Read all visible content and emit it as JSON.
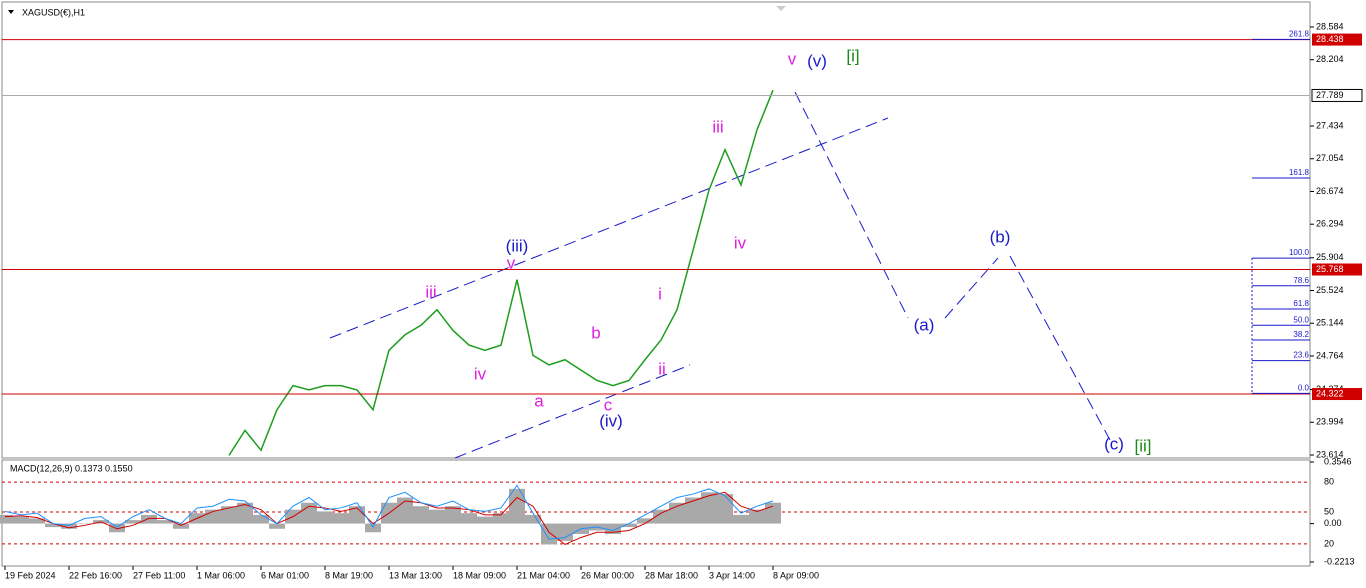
{
  "chart_data": [
    {
      "type": "line",
      "title": "XAGUSD(€),H1",
      "color": "#1e9e1e",
      "categories": [
        "19 Feb 2024",
        null,
        null,
        null,
        "22 Feb 16:00",
        null,
        null,
        null,
        "27 Feb 11:00",
        null,
        null,
        null,
        "1 Mar 06:00",
        null,
        null,
        null,
        "6 Mar 01:00",
        null,
        null,
        null,
        "8 Mar 19:00",
        null,
        null,
        null,
        "13 Mar 13:00",
        null,
        null,
        null,
        "18 Mar 09:00",
        null,
        null,
        null,
        "21 Mar 04:00",
        null,
        null,
        null,
        "26 Mar 00:00",
        null,
        null,
        null,
        "28 Mar 18:00",
        null,
        null,
        null,
        "3 Apr 14:00",
        null,
        null,
        null,
        "8 Apr 09:00"
      ],
      "values": [
        null,
        null,
        null,
        null,
        null,
        null,
        null,
        null,
        null,
        null,
        null,
        null,
        null,
        null,
        23.61,
        23.9,
        23.67,
        24.14,
        24.42,
        24.37,
        24.42,
        24.42,
        24.37,
        24.14,
        24.83,
        25.01,
        25.12,
        25.3,
        25.06,
        24.89,
        24.83,
        24.89,
        25.65,
        24.77,
        24.66,
        24.72,
        24.6,
        24.48,
        24.42,
        24.48,
        24.72,
        24.95,
        25.3,
        25.99,
        26.69,
        27.16,
        26.75,
        27.39,
        27.85
      ],
      "ylim": [
        23.614,
        28.584
      ],
      "yticks": [
        28.584,
        28.204,
        27.434,
        27.054,
        26.674,
        26.294,
        25.904,
        25.524,
        25.144,
        24.764,
        24.374,
        23.994,
        23.614
      ],
      "current": 27.789,
      "levels": [
        {
          "value": 28.438,
          "color": "#d00000"
        },
        {
          "value": 25.768,
          "color": "#d00000"
        },
        {
          "value": 24.322,
          "color": "#d00000"
        }
      ],
      "fibs": [
        {
          "label": "261.8",
          "price": 28.44
        },
        {
          "label": "161.8",
          "price": 26.83
        },
        {
          "label": "100.0",
          "price": 25.9
        },
        {
          "label": "78.6",
          "price": 25.58
        },
        {
          "label": "61.8",
          "price": 25.31
        },
        {
          "label": "50.0",
          "price": 25.12
        },
        {
          "label": "38.2",
          "price": 24.95
        },
        {
          "label": "23.6",
          "price": 24.71
        },
        {
          "label": "0.0",
          "price": 24.33
        }
      ],
      "annotations": [
        {
          "text": "v",
          "color": "#e020e0"
        },
        {
          "text": "(v)",
          "color": "#1a1acc"
        },
        {
          "text": "[i]",
          "color": "#1a8a1a"
        },
        {
          "text": "iii",
          "color": "#e020e0"
        },
        {
          "text": "iv",
          "color": "#e020e0"
        },
        {
          "text": "(iii)",
          "color": "#1a1acc"
        },
        {
          "text": "v",
          "color": "#e020e0"
        },
        {
          "text": "iii",
          "color": "#e020e0"
        },
        {
          "text": "iv",
          "color": "#e020e0"
        },
        {
          "text": "a",
          "color": "#e020e0"
        },
        {
          "text": "b",
          "color": "#e020e0"
        },
        {
          "text": "c",
          "color": "#e020e0"
        },
        {
          "text": "(iv)",
          "color": "#1a1acc"
        },
        {
          "text": "i",
          "color": "#e020e0"
        },
        {
          "text": "ii",
          "color": "#e020e0"
        },
        {
          "text": "(a)",
          "color": "#1a1acc"
        },
        {
          "text": "(b)",
          "color": "#1a1acc"
        },
        {
          "text": "(c)",
          "color": "#1a1acc"
        },
        {
          "text": "[ii]",
          "color": "#1a8a1a"
        }
      ]
    },
    {
      "type": "macd",
      "title": "MACD(12,26,9) 0.1373 0.1550",
      "ylim": [
        -0.2213,
        0.3546
      ],
      "yticks": [
        0.3546,
        {
          "value": 0.239,
          "label": "80"
        },
        {
          "value": 0.067,
          "label": "50"
        },
        {
          "value": 0,
          "label": "0.00"
        },
        {
          "value": -0.117,
          "label": "20"
        },
        -0.2213
      ],
      "series": [
        {
          "color": "#a9a9a9",
          "values": [
            0.05,
            0.04,
            0.03,
            -0.02,
            -0.03,
            0.0,
            0.02,
            -0.05,
            0.02,
            0.05,
            0.02,
            -0.03,
            0.06,
            0.08,
            0.1,
            0.12,
            0.05,
            -0.03,
            0.08,
            0.12,
            0.07,
            0.06,
            0.1,
            -0.05,
            0.12,
            0.15,
            0.1,
            0.08,
            0.1,
            0.06,
            0.04,
            0.06,
            0.2,
            0.05,
            -0.12,
            -0.1,
            -0.06,
            -0.04,
            -0.06,
            -0.02,
            0.03,
            0.08,
            0.12,
            0.15,
            0.18,
            0.17,
            0.05,
            0.08,
            0.12
          ]
        },
        {
          "color": "#d00000",
          "values": [
            0.04,
            0.045,
            0.035,
            0.0,
            -0.025,
            -0.01,
            0.01,
            -0.03,
            -0.01,
            0.03,
            0.03,
            -0.01,
            0.03,
            0.07,
            0.09,
            0.11,
            0.08,
            0.0,
            0.04,
            0.1,
            0.09,
            0.07,
            0.09,
            0.0,
            0.06,
            0.13,
            0.12,
            0.09,
            0.09,
            0.08,
            0.05,
            0.05,
            0.15,
            0.1,
            -0.05,
            -0.12,
            -0.08,
            -0.05,
            -0.05,
            -0.04,
            0.0,
            0.06,
            0.1,
            0.13,
            0.16,
            0.18,
            0.1,
            0.07,
            0.1
          ]
        },
        {
          "color": "#1e90ff",
          "values": [
            0.07,
            0.05,
            0.06,
            0.0,
            -0.01,
            0.03,
            0.04,
            -0.02,
            0.04,
            0.08,
            0.03,
            0.0,
            0.09,
            0.1,
            0.14,
            0.13,
            0.05,
            0.0,
            0.1,
            0.15,
            0.08,
            0.09,
            0.12,
            -0.02,
            0.15,
            0.18,
            0.12,
            0.1,
            0.13,
            0.08,
            0.07,
            0.09,
            0.22,
            0.06,
            -0.09,
            -0.08,
            -0.03,
            -0.02,
            -0.04,
            0.0,
            0.05,
            0.1,
            0.15,
            0.17,
            0.2,
            0.16,
            0.06,
            0.1,
            0.13
          ]
        }
      ]
    }
  ]
}
